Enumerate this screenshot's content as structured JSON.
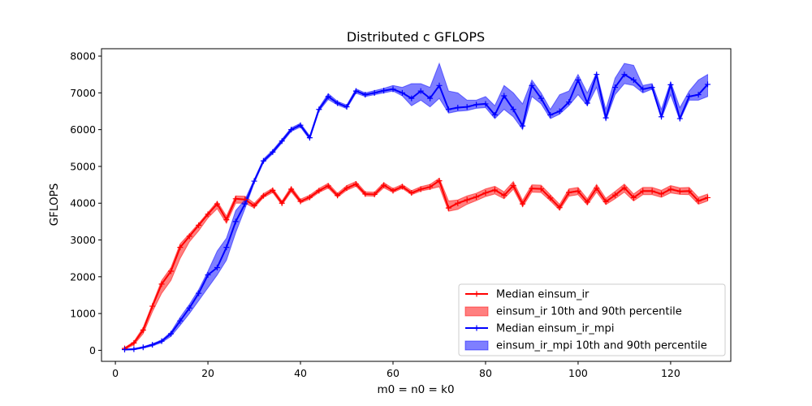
{
  "chart_data": {
    "type": "line",
    "title": "Distributed c GFLOPS",
    "xlabel": "m0 = n0 = k0",
    "ylabel": "GFLOPS",
    "xlim": [
      -3,
      133
    ],
    "ylim": [
      -300,
      8200
    ],
    "xticks": [
      0,
      20,
      40,
      60,
      80,
      100,
      120
    ],
    "yticks": [
      0,
      1000,
      2000,
      3000,
      4000,
      5000,
      6000,
      7000,
      8000
    ],
    "grid": false,
    "legend_position": "lower-right",
    "x": [
      2,
      4,
      6,
      8,
      10,
      12,
      14,
      16,
      18,
      20,
      22,
      24,
      26,
      28,
      30,
      32,
      34,
      36,
      38,
      40,
      42,
      44,
      46,
      48,
      50,
      52,
      54,
      56,
      58,
      60,
      62,
      64,
      66,
      68,
      70,
      72,
      74,
      76,
      78,
      80,
      82,
      84,
      86,
      88,
      90,
      92,
      94,
      96,
      98,
      100,
      102,
      104,
      106,
      108,
      110,
      112,
      114,
      116,
      118,
      120,
      122,
      124,
      126,
      128
    ],
    "series": [
      {
        "name": "Median einsum_ir",
        "color": "#ff0000",
        "marker": "+",
        "median": [
          50,
          200,
          550,
          1200,
          1800,
          2150,
          2800,
          3100,
          3400,
          3700,
          3980,
          3550,
          4120,
          4100,
          3930,
          4200,
          4350,
          4000,
          4380,
          4050,
          4160,
          4340,
          4470,
          4210,
          4410,
          4520,
          4250,
          4240,
          4490,
          4340,
          4450,
          4280,
          4380,
          4440,
          4610,
          3870,
          4000,
          4090,
          4170,
          4280,
          4360,
          4210,
          4480,
          3980,
          4400,
          4390,
          4140,
          3880,
          4290,
          4330,
          4030,
          4410,
          4040,
          4220,
          4420,
          4150,
          4330,
          4330,
          4250,
          4380,
          4320,
          4330,
          4060,
          4150
        ],
        "p10": [
          20,
          150,
          450,
          1050,
          1550,
          1900,
          2500,
          2950,
          3250,
          3600,
          3850,
          3450,
          4000,
          4000,
          3870,
          4150,
          4290,
          3950,
          4310,
          4000,
          4110,
          4290,
          4410,
          4160,
          4350,
          4460,
          4200,
          4190,
          4420,
          4290,
          4400,
          4230,
          4330,
          4380,
          4450,
          3780,
          3830,
          3970,
          4070,
          4180,
          4250,
          4120,
          4380,
          3900,
          4300,
          4290,
          4060,
          3810,
          4190,
          4230,
          3950,
          4300,
          3960,
          4120,
          4300,
          4060,
          4230,
          4230,
          4160,
          4280,
          4240,
          4230,
          3970,
          4060
        ],
        "p90": [
          70,
          240,
          620,
          1260,
          1900,
          2250,
          2900,
          3170,
          3450,
          3750,
          4050,
          3650,
          4200,
          4190,
          4000,
          4260,
          4410,
          4060,
          4450,
          4110,
          4220,
          4400,
          4540,
          4270,
          4480,
          4590,
          4310,
          4300,
          4560,
          4400,
          4510,
          4340,
          4450,
          4510,
          4680,
          4060,
          4090,
          4200,
          4270,
          4390,
          4460,
          4310,
          4590,
          4080,
          4500,
          4490,
          4230,
          3970,
          4390,
          4430,
          4120,
          4510,
          4130,
          4320,
          4520,
          4250,
          4430,
          4430,
          4350,
          4480,
          4420,
          4430,
          4160,
          4250
        ]
      },
      {
        "name": "Median einsum_ir_mpi",
        "color": "#0000ff",
        "marker": "+",
        "median": [
          20,
          30,
          80,
          150,
          250,
          450,
          800,
          1150,
          1550,
          2050,
          2250,
          2800,
          3500,
          3980,
          4600,
          5150,
          5390,
          5690,
          6000,
          6120,
          5780,
          6550,
          6900,
          6720,
          6620,
          7050,
          6950,
          7000,
          7060,
          7100,
          7000,
          6850,
          7050,
          6850,
          7200,
          6550,
          6600,
          6620,
          6680,
          6700,
          6400,
          6920,
          6550,
          6100,
          7200,
          6850,
          6400,
          6500,
          6750,
          7350,
          6720,
          7500,
          6320,
          7150,
          7500,
          7350,
          7100,
          7150,
          6350,
          7220,
          6300,
          6900,
          6950,
          7230
        ],
        "p10": [
          10,
          15,
          60,
          120,
          210,
          380,
          680,
          1000,
          1350,
          1700,
          2050,
          2450,
          3200,
          3850,
          4550,
          5100,
          5340,
          5640,
          5950,
          6070,
          5730,
          6500,
          6820,
          6670,
          6570,
          6990,
          6900,
          6950,
          7000,
          7050,
          6920,
          6650,
          6800,
          6620,
          6850,
          6450,
          6500,
          6520,
          6580,
          6600,
          6300,
          6550,
          6350,
          6000,
          6900,
          6700,
          6300,
          6420,
          6650,
          6950,
          6650,
          7150,
          6250,
          6950,
          7250,
          7200,
          7000,
          7100,
          6300,
          6950,
          6250,
          6800,
          6800,
          6900
        ],
        "p90": [
          30,
          50,
          100,
          180,
          280,
          500,
          900,
          1250,
          1650,
          2150,
          2700,
          3050,
          3800,
          4100,
          4650,
          5200,
          5440,
          5740,
          6050,
          6170,
          5830,
          6600,
          6980,
          6770,
          6670,
          7110,
          7000,
          7060,
          7120,
          7200,
          7150,
          7250,
          7250,
          7150,
          7800,
          7050,
          7000,
          6800,
          6800,
          6900,
          6650,
          7200,
          7000,
          6700,
          7350,
          7000,
          6550,
          6950,
          7050,
          7500,
          7000,
          7550,
          6550,
          7400,
          7800,
          7750,
          7200,
          7250,
          6550,
          7300,
          6600,
          7050,
          7350,
          7500
        ]
      }
    ],
    "legend": [
      {
        "label": "Median einsum_ir",
        "kind": "line",
        "color": "#ff0000"
      },
      {
        "label": "einsum_ir 10th and 90th percentile",
        "kind": "band",
        "color": "#ff0000"
      },
      {
        "label": "Median einsum_ir_mpi",
        "kind": "line",
        "color": "#0000ff"
      },
      {
        "label": "einsum_ir_mpi 10th and 90th percentile",
        "kind": "band",
        "color": "#0000ff"
      }
    ]
  }
}
